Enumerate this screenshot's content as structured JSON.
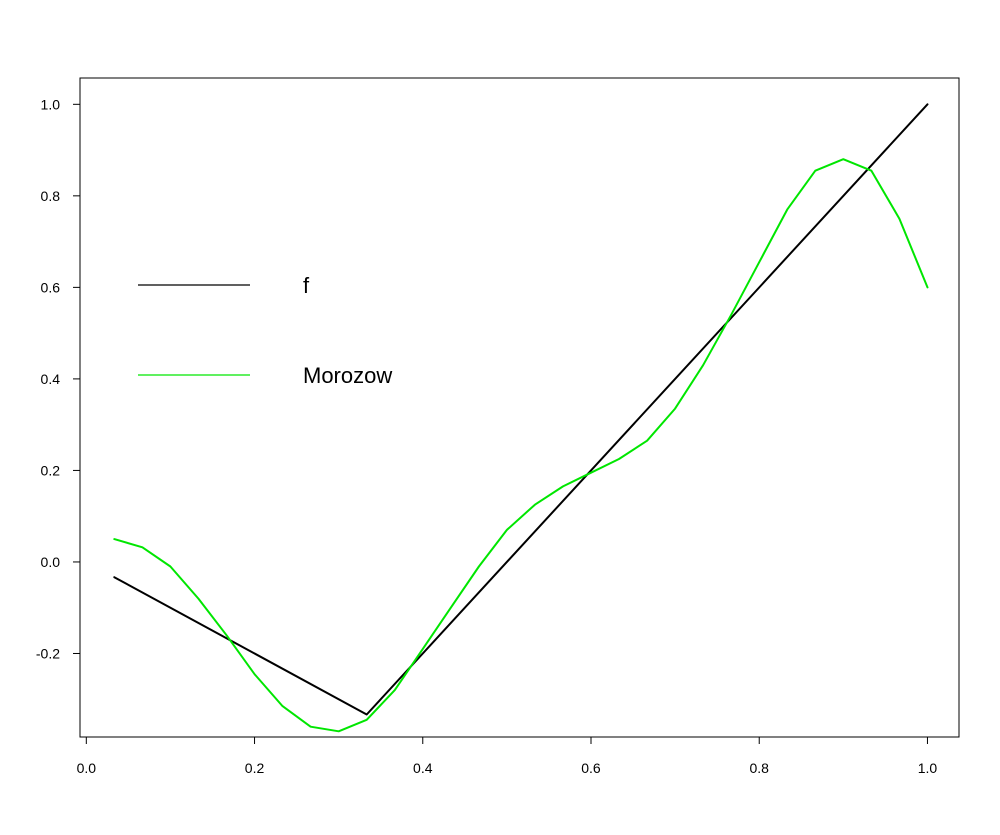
{
  "chart_data": {
    "type": "line",
    "title": "",
    "xlabel": "",
    "ylabel": "",
    "xlim": [
      -0.0075,
      1.0375
    ],
    "ylim": [
      -0.3825,
      1.0575
    ],
    "x_ticks": [
      0.0,
      0.2,
      0.4,
      0.6,
      0.8,
      1.0
    ],
    "x_tick_labels": [
      "0.0",
      "0.2",
      "0.4",
      "0.6",
      "0.8",
      "1.0"
    ],
    "y_ticks": [
      -0.2,
      0.0,
      0.2,
      0.4,
      0.6,
      0.8,
      1.0
    ],
    "y_tick_labels": [
      "-0.2",
      "0.0",
      "0.2",
      "0.4",
      "0.6",
      "0.8",
      "1.0"
    ],
    "grid": false,
    "legend_position": "left",
    "series": [
      {
        "name": "f",
        "color": "#000000",
        "x": [
          0.0333,
          0.3333,
          1.0
        ],
        "y": [
          -0.0333,
          -0.3333,
          1.0
        ]
      },
      {
        "name": "Morozow",
        "color": "#00e600",
        "x": [
          0.0333,
          0.0667,
          0.1,
          0.1333,
          0.1667,
          0.2,
          0.2333,
          0.2667,
          0.3,
          0.3333,
          0.3667,
          0.4,
          0.4333,
          0.4667,
          0.5,
          0.5333,
          0.5667,
          0.6,
          0.6333,
          0.6667,
          0.7,
          0.7333,
          0.7667,
          0.8,
          0.8333,
          0.8667,
          0.9,
          0.9333,
          0.9667,
          1.0
        ],
        "y": [
          0.05,
          0.032,
          -0.01,
          -0.08,
          -0.16,
          -0.245,
          -0.315,
          -0.36,
          -0.37,
          -0.345,
          -0.28,
          -0.19,
          -0.1,
          -0.01,
          0.07,
          0.125,
          0.165,
          0.195,
          0.225,
          0.265,
          0.335,
          0.43,
          0.54,
          0.655,
          0.77,
          0.855,
          0.88,
          0.855,
          0.75,
          0.6
        ]
      }
    ]
  }
}
